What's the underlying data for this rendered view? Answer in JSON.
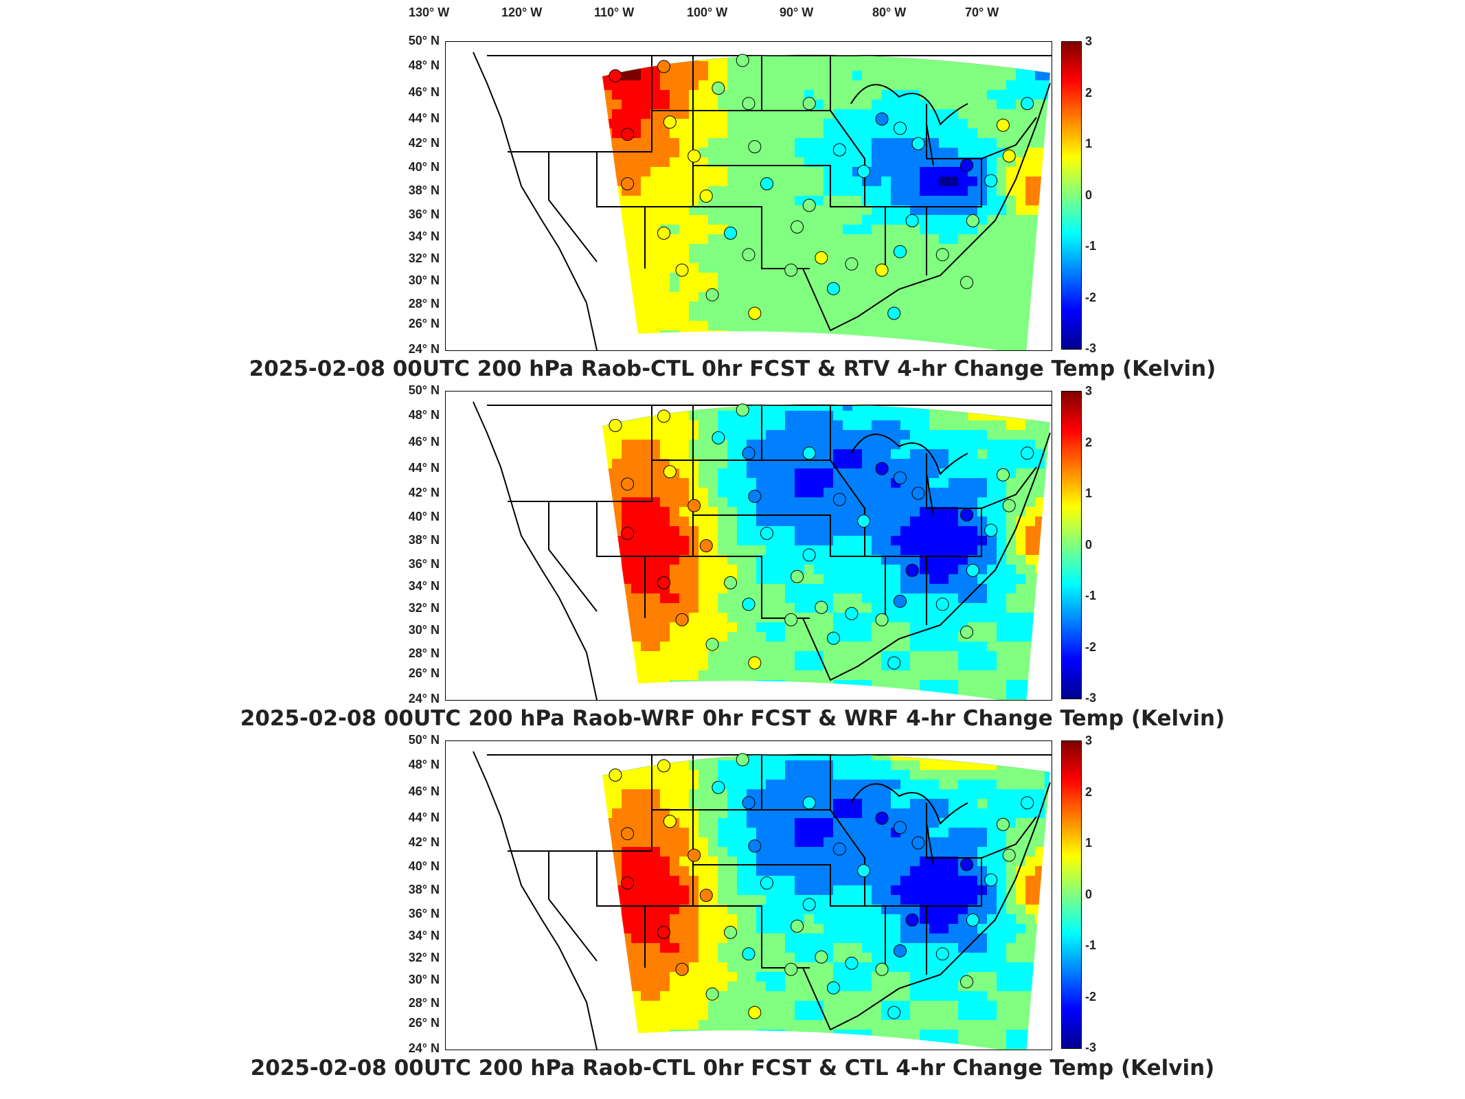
{
  "longitude_labels": [
    "130° W",
    "120° W",
    "110° W",
    "100° W",
    "90° W",
    "80° W",
    "70° W"
  ],
  "latitude_labels": [
    "50° N",
    "48° N",
    "46° N",
    "44° N",
    "42° N",
    "40° N",
    "38° N",
    "36° N",
    "34° N",
    "32° N",
    "30° N",
    "28° N",
    "26° N",
    "24° N"
  ],
  "colorbar_ticks": [
    "3",
    "2",
    "1",
    "0",
    "-1",
    "-2",
    "-3"
  ],
  "colormap_colors": [
    "#00008f",
    "#0000ff",
    "#0080ff",
    "#00ffff",
    "#80ff80",
    "#ffff00",
    "#ff8000",
    "#ff0000",
    "#800000"
  ],
  "panels": [
    {
      "title": "2025-02-08 00UTC 200 hPa Raob-CTL 0hr FCST & RTV 4-hr Change Temp (Kelvin)"
    },
    {
      "title": "2025-02-08 00UTC 200 hPa Raob-WRF 0hr FCST & WRF 4-hr Change Temp (Kelvin)"
    },
    {
      "title": "2025-02-08 00UTC 200 hPa Raob-CTL 0hr FCST & CTL 4-hr Change Temp (Kelvin)"
    }
  ]
}
